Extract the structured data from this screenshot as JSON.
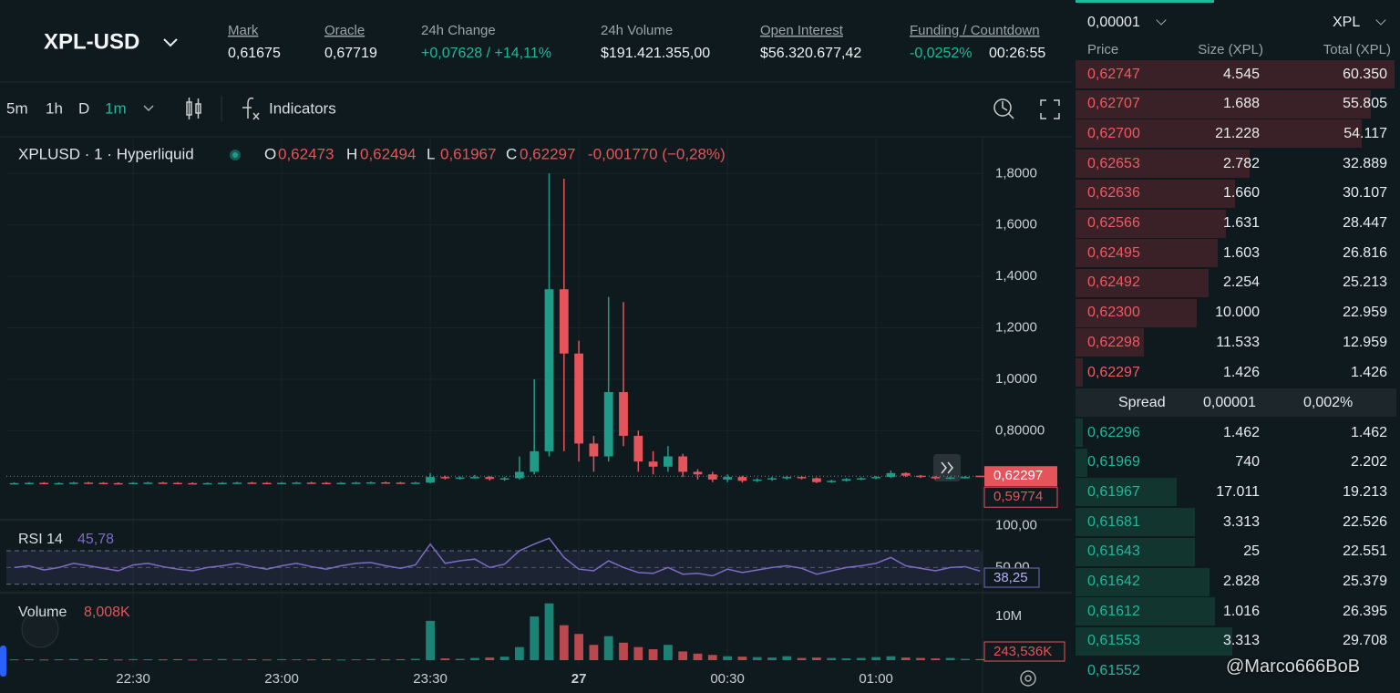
{
  "header": {
    "symbol": "XPL-USD",
    "stats": [
      {
        "label": "Mark",
        "value": "0,61675"
      },
      {
        "label": "Oracle",
        "value": "0,67719"
      },
      {
        "label": "24h Change",
        "value": "+0,07628 / +14,11%"
      },
      {
        "label": "24h Volume",
        "value": "$191.421.355,00"
      },
      {
        "label": "Open Interest",
        "value": "$56.320.677,42"
      },
      {
        "label": "Funding / Countdown",
        "value": "-0,0252%",
        "value2": "00:26:55"
      }
    ]
  },
  "toolbar": {
    "intervals": [
      "5m",
      "1h",
      "D",
      "1m"
    ],
    "indicators": "Indicators"
  },
  "chart_data": {
    "type": "candlestick",
    "legend": {
      "symbol": "XPLUSD · 1 · Hyperliquid",
      "ohlc": [
        {
          "k": "O",
          "v": "0,62473"
        },
        {
          "k": "H",
          "v": "0,62494"
        },
        {
          "k": "L",
          "v": "0,61967"
        },
        {
          "k": "C",
          "v": "0,62297"
        }
      ],
      "change": "-0,001770 (−0,28%)"
    },
    "up_color": "#1f9c88",
    "down_color": "#e5545a",
    "xlim": [
      -0.53,
      65.17
    ],
    "xticks": [
      {
        "value": 8,
        "label": "22:30"
      },
      {
        "value": 18,
        "label": "23:00"
      },
      {
        "value": 28,
        "label": "23:30"
      },
      {
        "value": 38,
        "label": "27"
      },
      {
        "value": 48,
        "label": "00:30"
      },
      {
        "value": 58,
        "label": "01:00"
      }
    ],
    "ylim": [
      0.4607,
      1.9429
    ],
    "yticks": [
      {
        "value": 0.8,
        "label": "0,80000"
      },
      {
        "value": 1.0,
        "label": "1,0000"
      },
      {
        "value": 1.2,
        "label": "1,2000"
      },
      {
        "value": 1.4,
        "label": "1,4000"
      },
      {
        "value": 1.6,
        "label": "1,6000"
      },
      {
        "value": 1.8,
        "label": "1,8000"
      }
    ],
    "open": [
      0.595,
      0.596,
      0.597,
      0.595,
      0.596,
      0.598,
      0.597,
      0.596,
      0.595,
      0.597,
      0.598,
      0.597,
      0.596,
      0.595,
      0.596,
      0.597,
      0.598,
      0.597,
      0.596,
      0.597,
      0.598,
      0.597,
      0.596,
      0.597,
      0.598,
      0.599,
      0.598,
      0.597,
      0.598,
      0.62,
      0.615,
      0.618,
      0.62,
      0.612,
      0.615,
      0.64,
      0.72,
      1.35,
      1.1,
      0.75,
      0.7,
      0.95,
      0.78,
      0.68,
      0.66,
      0.7,
      0.64,
      0.63,
      0.61,
      0.62,
      0.605,
      0.61,
      0.615,
      0.62,
      0.615,
      0.6,
      0.605,
      0.612,
      0.615,
      0.62,
      0.635,
      0.625,
      0.62,
      0.615,
      0.618,
      0.62473
    ],
    "high": [
      0.599,
      0.6,
      0.6,
      0.599,
      0.601,
      0.601,
      0.6,
      0.599,
      0.6,
      0.601,
      0.601,
      0.6,
      0.599,
      0.599,
      0.6,
      0.601,
      0.601,
      0.6,
      0.6,
      0.601,
      0.601,
      0.6,
      0.6,
      0.601,
      0.602,
      0.602,
      0.601,
      0.601,
      0.635,
      0.625,
      0.622,
      0.628,
      0.624,
      0.62,
      0.7,
      1.0,
      1.8,
      1.78,
      1.15,
      0.78,
      1.32,
      1.3,
      0.8,
      0.72,
      0.74,
      0.71,
      0.65,
      0.64,
      0.63,
      0.625,
      0.615,
      0.62,
      0.625,
      0.624,
      0.618,
      0.609,
      0.616,
      0.619,
      0.624,
      0.645,
      0.638,
      0.628,
      0.623,
      0.621,
      0.624,
      0.62494
    ],
    "low": [
      0.592,
      0.593,
      0.592,
      0.592,
      0.593,
      0.594,
      0.593,
      0.592,
      0.592,
      0.594,
      0.594,
      0.593,
      0.592,
      0.592,
      0.593,
      0.594,
      0.594,
      0.593,
      0.593,
      0.594,
      0.594,
      0.593,
      0.593,
      0.594,
      0.595,
      0.595,
      0.594,
      0.594,
      0.595,
      0.61,
      0.61,
      0.614,
      0.606,
      0.605,
      0.61,
      0.63,
      0.7,
      0.72,
      0.68,
      0.64,
      0.68,
      0.74,
      0.64,
      0.63,
      0.64,
      0.62,
      0.61,
      0.6,
      0.6,
      0.598,
      0.6,
      0.605,
      0.61,
      0.61,
      0.596,
      0.597,
      0.602,
      0.608,
      0.611,
      0.616,
      0.62,
      0.616,
      0.611,
      0.611,
      0.614,
      0.61967
    ],
    "close": [
      0.596,
      0.597,
      0.595,
      0.596,
      0.598,
      0.597,
      0.596,
      0.595,
      0.597,
      0.598,
      0.597,
      0.596,
      0.595,
      0.596,
      0.597,
      0.598,
      0.597,
      0.596,
      0.597,
      0.598,
      0.597,
      0.596,
      0.597,
      0.598,
      0.599,
      0.598,
      0.597,
      0.598,
      0.62,
      0.615,
      0.618,
      0.62,
      0.612,
      0.615,
      0.64,
      0.72,
      1.35,
      1.1,
      0.75,
      0.7,
      0.95,
      0.78,
      0.68,
      0.66,
      0.7,
      0.64,
      0.63,
      0.61,
      0.62,
      0.605,
      0.61,
      0.615,
      0.62,
      0.615,
      0.6,
      0.605,
      0.612,
      0.615,
      0.62,
      0.635,
      0.625,
      0.62,
      0.615,
      0.618,
      0.62,
      0.62297
    ],
    "last_price": {
      "value": 0.62297,
      "label": "0,62297"
    },
    "mark_tag": "0,59774",
    "rsi": {
      "label": "RSI 14",
      "value": "45,78",
      "color": "#7e6bc4",
      "ylim": [
        22,
        105
      ],
      "ticks": [
        {
          "value": 100,
          "label": "100,00"
        },
        {
          "value": 50,
          "label": "50,00"
        }
      ],
      "band": [
        70,
        30
      ],
      "tag": "38,25",
      "values": [
        50,
        52,
        47,
        50,
        55,
        52,
        49,
        46,
        53,
        55,
        51,
        48,
        46,
        50,
        52,
        55,
        51,
        48,
        52,
        55,
        51,
        48,
        52,
        55,
        56,
        52,
        49,
        53,
        78,
        55,
        58,
        60,
        50,
        54,
        70,
        78,
        85,
        62,
        48,
        46,
        58,
        50,
        44,
        43,
        50,
        42,
        43,
        40,
        48,
        44,
        47,
        50,
        52,
        49,
        42,
        46,
        50,
        52,
        55,
        62,
        52,
        49,
        46,
        50,
        51,
        45.78
      ]
    },
    "volume": {
      "label": "Volume",
      "value": "8,008K",
      "ylim": [
        0,
        14400000
      ],
      "ticks": [
        {
          "value": 10000000,
          "label": "10M"
        }
      ],
      "tag": "243,536K",
      "values": [
        180000,
        220000,
        150000,
        200000,
        250000,
        190000,
        210000,
        160000,
        230000,
        200000,
        180000,
        220000,
        150000,
        200000,
        250000,
        190000,
        210000,
        160000,
        230000,
        200000,
        180000,
        220000,
        150000,
        200000,
        250000,
        190000,
        210000,
        300000,
        9000000,
        400000,
        300000,
        500000,
        600000,
        800000,
        3000000,
        10000000,
        13000000,
        8000000,
        6000000,
        3500000,
        5500000,
        4000000,
        3000000,
        2500000,
        3500000,
        2000000,
        1500000,
        1200000,
        900000,
        800000,
        700000,
        600000,
        900000,
        500000,
        600000,
        500000,
        400000,
        500000,
        700000,
        900000,
        600000,
        500000,
        400000,
        500000,
        300000,
        243536
      ]
    }
  },
  "book": {
    "tick": "0,00001",
    "asset": "XPL",
    "headers": [
      "Price",
      "Size (XPL)",
      "Total (XPL)"
    ],
    "asks": [
      [
        "0,62747",
        "4.545",
        "60.350"
      ],
      [
        "0,62707",
        "1.688",
        "55.805"
      ],
      [
        "0,62700",
        "21.228",
        "54.117"
      ],
      [
        "0,62653",
        "2.782",
        "32.889"
      ],
      [
        "0,62636",
        "1.660",
        "30.107"
      ],
      [
        "0,62566",
        "1.631",
        "28.447"
      ],
      [
        "0,62495",
        "1.603",
        "26.816"
      ],
      [
        "0,62492",
        "2.254",
        "25.213"
      ],
      [
        "0,62300",
        "10.000",
        "22.959"
      ],
      [
        "0,62298",
        "11.533",
        "12.959"
      ],
      [
        "0,62297",
        "1.426",
        "1.426"
      ]
    ],
    "spread": {
      "label": "Spread",
      "value": "0,00001",
      "percent": "0,002%"
    },
    "bids": [
      [
        "0,62296",
        "1.462",
        "1.462"
      ],
      [
        "0,61969",
        "740",
        "2.202"
      ],
      [
        "0,61967",
        "17.011",
        "19.213"
      ],
      [
        "0,61681",
        "3.313",
        "22.526"
      ],
      [
        "0,61643",
        "25",
        "22.551"
      ],
      [
        "0,61642",
        "2.828",
        "25.379"
      ],
      [
        "0,61612",
        "1.016",
        "26.395"
      ],
      [
        "0,61553",
        "3.313",
        "29.708"
      ],
      [
        "0,61552"
      ]
    ]
  },
  "watermark": "@Marco666BoB"
}
